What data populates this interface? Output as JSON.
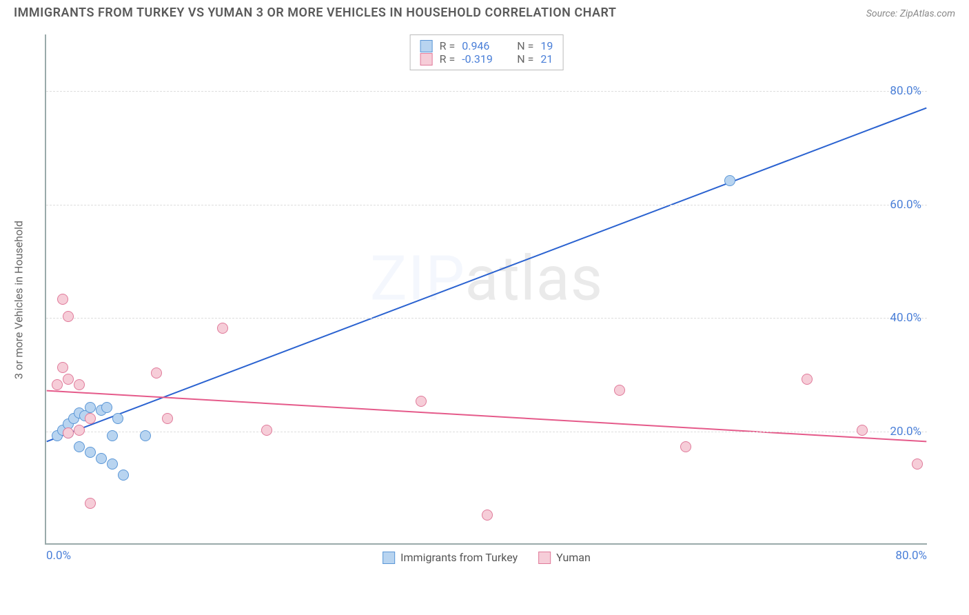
{
  "title": "IMMIGRANTS FROM TURKEY VS YUMAN 3 OR MORE VEHICLES IN HOUSEHOLD CORRELATION CHART",
  "source": "Source: ZipAtlas.com",
  "ylabel": "3 or more Vehicles in Household",
  "watermark_a": "ZIP",
  "watermark_b": "atlas",
  "chart": {
    "type": "scatter",
    "xlim": [
      0,
      80
    ],
    "ylim": [
      0,
      90
    ],
    "yticks": [
      20,
      40,
      60,
      80
    ],
    "ytick_labels": [
      "20.0%",
      "40.0%",
      "60.0%",
      "80.0%"
    ],
    "xtick_left": "0.0%",
    "xtick_right": "80.0%",
    "grid_color": "#dddddd",
    "axis_color": "#99aaaa",
    "tick_color": "#4a7fd8",
    "point_radius": 8,
    "series": [
      {
        "name": "Immigrants from Turkey",
        "color_fill": "#b8d4f0",
        "color_stroke": "#5a96d6",
        "R": "0.946",
        "N": "19",
        "line": {
          "x1": 0,
          "y1": 18,
          "x2": 80,
          "y2": 77,
          "color": "#2a62d0",
          "width": 2
        },
        "points": [
          [
            1,
            19
          ],
          [
            1.5,
            20
          ],
          [
            2,
            19.5
          ],
          [
            2,
            21
          ],
          [
            2.5,
            22
          ],
          [
            3,
            23
          ],
          [
            3.5,
            22.5
          ],
          [
            4,
            24
          ],
          [
            5,
            23.5
          ],
          [
            5.5,
            24
          ],
          [
            6,
            19
          ],
          [
            6.5,
            22
          ],
          [
            3,
            17
          ],
          [
            4,
            16
          ],
          [
            5,
            15
          ],
          [
            6,
            14
          ],
          [
            9,
            19
          ],
          [
            7,
            12
          ],
          [
            62,
            64
          ]
        ]
      },
      {
        "name": "Yuman",
        "color_fill": "#f6cdd8",
        "color_stroke": "#e07a9a",
        "R": "-0.319",
        "N": "21",
        "line": {
          "x1": 0,
          "y1": 27,
          "x2": 80,
          "y2": 18,
          "color": "#e55a8a",
          "width": 2
        },
        "points": [
          [
            1,
            28
          ],
          [
            1.5,
            43
          ],
          [
            2,
            40
          ],
          [
            2,
            29
          ],
          [
            3,
            20
          ],
          [
            4,
            22
          ],
          [
            3,
            28
          ],
          [
            10,
            30
          ],
          [
            11,
            22
          ],
          [
            16,
            38
          ],
          [
            20,
            20
          ],
          [
            34,
            25
          ],
          [
            40,
            5
          ],
          [
            4,
            7
          ],
          [
            52,
            27
          ],
          [
            58,
            17
          ],
          [
            69,
            29
          ],
          [
            74,
            20
          ],
          [
            79,
            14
          ],
          [
            2,
            19.5
          ],
          [
            1.5,
            31
          ]
        ]
      }
    ],
    "legend_bottom": [
      "Immigrants from Turkey",
      "Yuman"
    ]
  }
}
